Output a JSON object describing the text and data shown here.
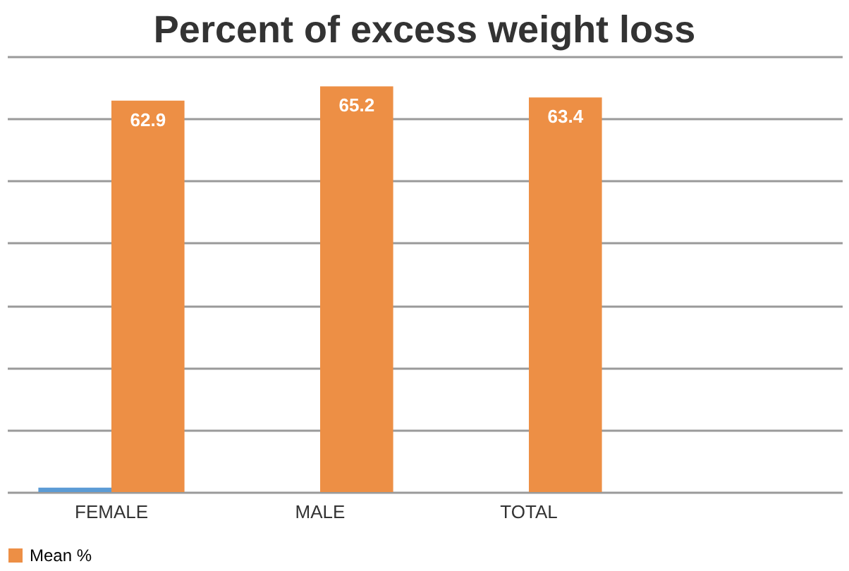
{
  "chart_data": {
    "type": "bar",
    "title": "Percent of excess weight loss",
    "categories": [
      "FEMALE",
      "MALE",
      "TOTAL",
      null
    ],
    "series": [
      {
        "color": "#5b9bd5",
        "values": [
          0.7,
          null,
          null,
          null
        ]
      },
      {
        "name": "Mean %",
        "color": "#ed8f45",
        "values": [
          62.9,
          65.2,
          63.4,
          null
        ],
        "value_labels": [
          "62.9",
          "65.2",
          "63.4",
          null
        ]
      }
    ],
    "ylim": [
      0,
      70
    ],
    "yticks": [
      {
        "value": 0,
        "label": null
      },
      {
        "value": 10,
        "label": null
      },
      {
        "value": 20,
        "label": null
      },
      {
        "value": 30,
        "label": null
      },
      {
        "value": 40,
        "label": null
      },
      {
        "value": 50,
        "label": null
      },
      {
        "value": 60,
        "label": null
      },
      {
        "value": 70,
        "label": null
      }
    ],
    "grid": "y",
    "tick_labels": "x",
    "legend": "bottom"
  }
}
